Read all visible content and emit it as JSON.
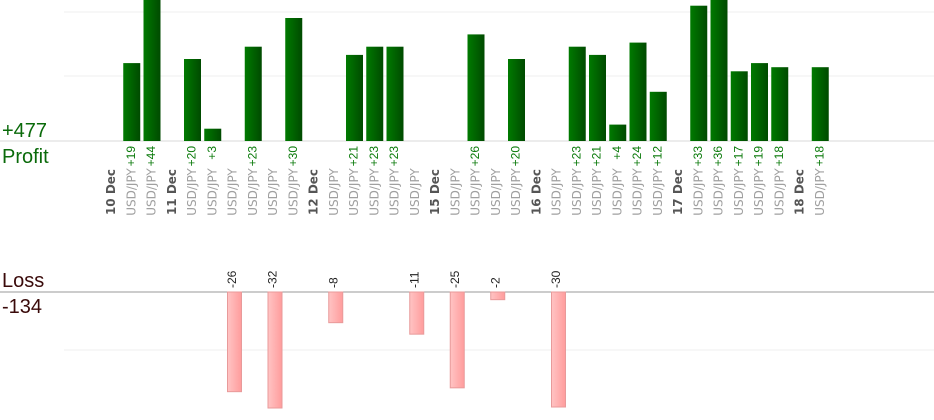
{
  "chart_data": {
    "type": "bar",
    "profit": {
      "title": "Profit",
      "total_label": "+477",
      "color": "#006400",
      "label_color": "#0a7a0a",
      "title_color": "#0a6a0a",
      "axis_max": 30
    },
    "loss": {
      "title": "Loss",
      "total_label": "-134",
      "color": "#ffb3b3",
      "border_color": "#e89a9a",
      "title_color": "#3a0a0a",
      "axis_min": -30
    },
    "pair": "USD/JPY",
    "date_groups": [
      {
        "date": "10 Dec",
        "trades": [
          {
            "value": 19,
            "label": "+19"
          },
          {
            "value": 44,
            "label": "+44"
          }
        ]
      },
      {
        "date": "11 Dec",
        "trades": [
          {
            "value": 20,
            "label": "+20"
          },
          {
            "value": 3,
            "label": "+3"
          },
          {
            "value": -26,
            "label": "-26"
          },
          {
            "value": 23,
            "label": "+23"
          },
          {
            "value": -32,
            "label": "-32"
          },
          {
            "value": 30,
            "label": "+30"
          }
        ]
      },
      {
        "date": "12 Dec",
        "trades": [
          {
            "value": -8,
            "label": "-8"
          },
          {
            "value": 21,
            "label": "+21"
          },
          {
            "value": 23,
            "label": "+23"
          },
          {
            "value": 23,
            "label": "+23"
          },
          {
            "value": -11,
            "label": "-11"
          }
        ]
      },
      {
        "date": "15 Dec",
        "trades": [
          {
            "value": -25,
            "label": "-25"
          },
          {
            "value": 26,
            "label": "+26"
          },
          {
            "value": -2,
            "label": "-2"
          },
          {
            "value": 20,
            "label": "+20"
          }
        ]
      },
      {
        "date": "16 Dec",
        "trades": [
          {
            "value": -30,
            "label": "-30"
          },
          {
            "value": 23,
            "label": "+23"
          },
          {
            "value": 21,
            "label": "+21"
          },
          {
            "value": 4,
            "label": "+4"
          },
          {
            "value": 24,
            "label": "+24"
          },
          {
            "value": 12,
            "label": "+12"
          }
        ]
      },
      {
        "date": "17 Dec",
        "trades": [
          {
            "value": 33,
            "label": "+33"
          },
          {
            "value": 36,
            "label": "+36"
          },
          {
            "value": 17,
            "label": "+17"
          },
          {
            "value": 19,
            "label": "+19"
          },
          {
            "value": 18,
            "label": "+18"
          }
        ]
      },
      {
        "date": "18 Dec",
        "trades": [
          {
            "value": 18,
            "label": "+18"
          }
        ]
      }
    ]
  }
}
